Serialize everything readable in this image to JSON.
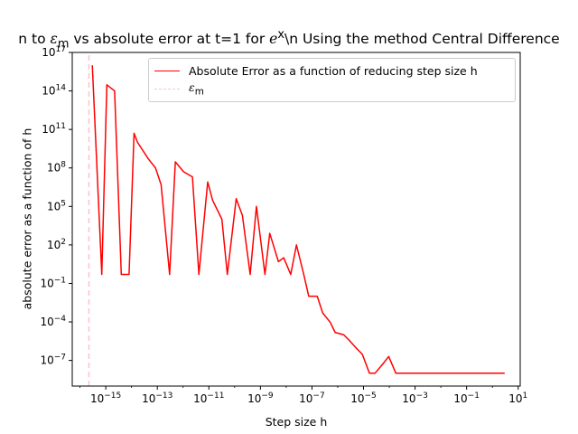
{
  "figure": {
    "title_parts": [
      "n to ",
      "ε",
      "m",
      " vs absolute error at t=1 for ",
      "e",
      "x",
      "\\n Using the method Central Difference"
    ]
  },
  "chart_data": {
    "type": "line",
    "xlabel": "Step size h",
    "ylabel": "absolute error as a function of h",
    "xscale": "log",
    "yscale": "log",
    "xlim": [
      5e-17,
      12
    ],
    "ylim": [
      1e-09,
      1e+17
    ],
    "grid": false,
    "legend_position": "top-right",
    "x_ticks": [
      {
        "value": 1e-15,
        "base": "10",
        "exp": "−15"
      },
      {
        "value": 1e-13,
        "base": "10",
        "exp": "−13"
      },
      {
        "value": 1e-11,
        "base": "10",
        "exp": "−11"
      },
      {
        "value": 1e-09,
        "base": "10",
        "exp": "−9"
      },
      {
        "value": 1e-07,
        "base": "10",
        "exp": "−7"
      },
      {
        "value": 1e-05,
        "base": "10",
        "exp": "−5"
      },
      {
        "value": 0.001,
        "base": "10",
        "exp": "−3"
      },
      {
        "value": 0.1,
        "base": "10",
        "exp": "−1"
      },
      {
        "value": 10,
        "base": "10",
        "exp": "1"
      }
    ],
    "y_ticks": [
      {
        "value": 1e-07,
        "base": "10",
        "exp": "−7"
      },
      {
        "value": 0.0001,
        "base": "10",
        "exp": "−4"
      },
      {
        "value": 0.1,
        "base": "10",
        "exp": "−1"
      },
      {
        "value": 100.0,
        "base": "10",
        "exp": "2"
      },
      {
        "value": 100000.0,
        "base": "10",
        "exp": "5"
      },
      {
        "value": 100000000.0,
        "base": "10",
        "exp": "8"
      },
      {
        "value": 100000000000.0,
        "base": "10",
        "exp": "11"
      },
      {
        "value": 100000000000000.0,
        "base": "10",
        "exp": "14"
      },
      {
        "value": 1e+17,
        "base": "10",
        "exp": "17"
      }
    ],
    "series": [
      {
        "name": "Absolute Error as a function of reducing step size h",
        "color": "#ff0000",
        "style": "solid",
        "x": [
          3e-16,
          7e-16,
          1.1e-15,
          2.2e-15,
          4e-15,
          8e-15,
          1.25e-14,
          1.7e-14,
          4.5e-14,
          8.5e-14,
          1.4e-13,
          3e-13,
          5e-13,
          1.05e-12,
          2.3e-12,
          4.1e-12,
          9e-12,
          1.4e-11,
          3.2e-11,
          5.2e-11,
          1.15e-10,
          2e-10,
          4e-10,
          7e-10,
          1.5e-09,
          2.3e-09,
          5e-09,
          8e-09,
          1.5e-08,
          2.5e-08,
          4.8e-08,
          7.5e-08,
          1.6e-07,
          2.6e-07,
          5e-07,
          8e-07,
          1.7e-06,
          2.7e-06,
          5e-06,
          9e-06,
          1.7e-05,
          2.8e-05,
          5.5e-05,
          9.5e-05,
          0.00018,
          0.0003,
          0.0006,
          0.001,
          0.003,
          0.01,
          0.03,
          0.1,
          0.3,
          1,
          2,
          3
        ],
        "y": [
          1e+16,
          0.5,
          300000000000000.0,
          100000000000000.0,
          0.5,
          0.5,
          50000000000.0,
          10000000000.0,
          500000000.0,
          100000000.0,
          5000000.0,
          0.5,
          300000000.0,
          50000000.0,
          20000000.0,
          0.5,
          8000000.0,
          300000.0,
          10000.0,
          0.5,
          400000.0,
          20000.0,
          0.5,
          100000.0,
          0.5,
          800,
          5,
          10,
          0.5,
          100,
          0.5,
          0.01,
          0.01,
          0.0005,
          0.0001,
          1.5e-05,
          1e-05,
          4e-06,
          1e-06,
          3e-07,
          1e-08,
          1e-08,
          5e-08,
          2e-07,
          1e-08,
          1e-08,
          1e-08,
          1e-08,
          1e-08,
          1e-08,
          1e-08,
          1e-08,
          1e-08,
          1e-08,
          1e-08,
          1e-08
        ]
      },
      {
        "name": "ε_m",
        "color": "#ffc0cb",
        "style": "dashed",
        "x": [
          2.22e-16,
          2.22e-16
        ],
        "y": [
          1e-09,
          1e+17
        ]
      }
    ]
  },
  "legend": {
    "items": [
      {
        "label": "Absolute Error as a function of reducing step size h",
        "color": "#ff0000",
        "style": "solid"
      },
      {
        "label_sym": "ε",
        "label_sub": "m",
        "color": "#ffc0cb",
        "style": "dashed"
      }
    ]
  }
}
